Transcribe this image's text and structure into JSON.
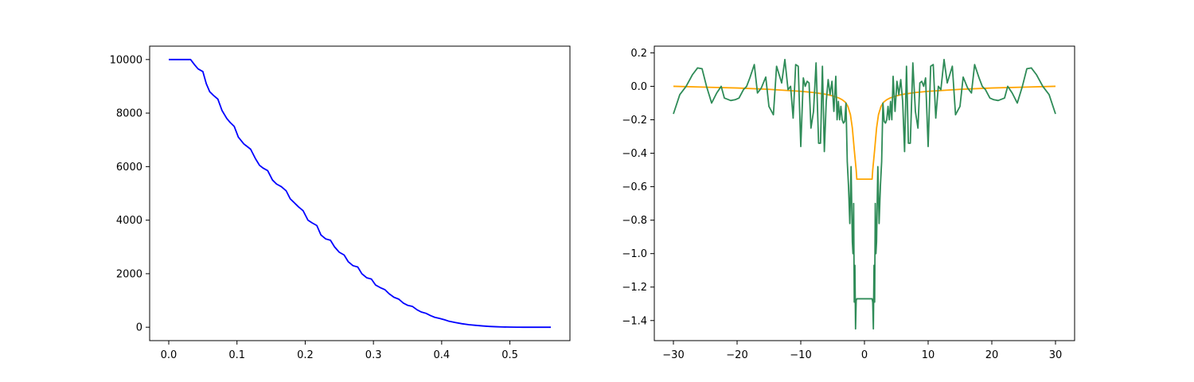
{
  "chart_data": [
    {
      "type": "line",
      "title": "",
      "xlabel": "",
      "ylabel": "",
      "xlim": [
        -0.028,
        0.588
      ],
      "ylim": [
        -500,
        10500
      ],
      "grid": false,
      "xticks": [
        0.0,
        0.1,
        0.2,
        0.3,
        0.4,
        0.5
      ],
      "xtick_labels": [
        "0.0",
        "0.1",
        "0.2",
        "0.3",
        "0.4",
        "0.5"
      ],
      "yticks": [
        0,
        2000,
        4000,
        6000,
        8000,
        10000
      ],
      "ytick_labels": [
        "0",
        "2000",
        "4000",
        "6000",
        "8000",
        "10000"
      ],
      "series": [
        {
          "color": "#0000ff",
          "x": [
            0.0,
            0.01,
            0.02,
            0.032,
            0.038,
            0.043,
            0.05,
            0.055,
            0.06,
            0.066,
            0.072,
            0.078,
            0.085,
            0.09,
            0.096,
            0.102,
            0.11,
            0.115,
            0.12,
            0.127,
            0.133,
            0.138,
            0.145,
            0.152,
            0.158,
            0.165,
            0.172,
            0.178,
            0.184,
            0.19,
            0.197,
            0.204,
            0.21,
            0.217,
            0.223,
            0.23,
            0.237,
            0.243,
            0.25,
            0.257,
            0.263,
            0.27,
            0.277,
            0.283,
            0.29,
            0.297,
            0.303,
            0.31,
            0.317,
            0.323,
            0.33,
            0.337,
            0.344,
            0.35,
            0.357,
            0.364,
            0.37,
            0.377,
            0.384,
            0.39,
            0.397,
            0.404,
            0.41,
            0.42,
            0.43,
            0.44,
            0.45,
            0.46,
            0.47,
            0.48,
            0.49,
            0.5,
            0.51,
            0.52,
            0.53,
            0.54,
            0.55,
            0.56
          ],
          "y": [
            10000,
            10000,
            10000,
            10000,
            9800,
            9650,
            9550,
            9100,
            8800,
            8650,
            8520,
            8100,
            7800,
            7650,
            7500,
            7100,
            6850,
            6750,
            6650,
            6300,
            6050,
            5950,
            5850,
            5500,
            5350,
            5250,
            5100,
            4800,
            4650,
            4500,
            4350,
            4000,
            3900,
            3800,
            3450,
            3300,
            3250,
            3000,
            2800,
            2700,
            2450,
            2300,
            2250,
            2000,
            1850,
            1800,
            1580,
            1480,
            1400,
            1250,
            1120,
            1050,
            900,
            820,
            780,
            650,
            570,
            520,
            430,
            370,
            330,
            280,
            230,
            175,
            130,
            95,
            70,
            48,
            30,
            18,
            10,
            5,
            2,
            0,
            0,
            0,
            0,
            0
          ]
        }
      ]
    },
    {
      "type": "line",
      "title": "",
      "xlabel": "",
      "ylabel": "",
      "xlim": [
        -33.0,
        33.0
      ],
      "ylim": [
        -1.52,
        0.24
      ],
      "grid": false,
      "xticks": [
        -30,
        -20,
        -10,
        0,
        10,
        20,
        30
      ],
      "xtick_labels": [
        "−30",
        "−20",
        "−10",
        "0",
        "10",
        "20",
        "30"
      ],
      "yticks": [
        0.2,
        0.0,
        -0.2,
        -0.4,
        -0.6,
        -0.8,
        -1.0,
        -1.2,
        -1.4
      ],
      "ytick_labels": [
        "0.2",
        "0.0",
        "−0.2",
        "−0.4",
        "−0.6",
        "−0.8",
        "−1.0",
        "−1.2",
        "−1.4"
      ],
      "series": [
        {
          "color": "#ffa500",
          "x": [
            -30,
            -25,
            -20,
            -15,
            -10,
            -8,
            -6,
            -5,
            -4,
            -3.5,
            -3,
            -2.6,
            -2.2,
            -1.9,
            -1.6,
            -1.3,
            -1.2,
            1.2,
            1.3,
            1.6,
            1.9,
            2.2,
            2.6,
            3,
            3.5,
            4,
            5,
            6,
            8,
            10,
            15,
            20,
            25,
            30
          ],
          "y": [
            0.0,
            -0.005,
            -0.01,
            -0.018,
            -0.03,
            -0.037,
            -0.048,
            -0.057,
            -0.07,
            -0.08,
            -0.095,
            -0.12,
            -0.17,
            -0.25,
            -0.38,
            -0.5,
            -0.555,
            -0.555,
            -0.5,
            -0.38,
            -0.25,
            -0.17,
            -0.12,
            -0.095,
            -0.08,
            -0.07,
            -0.057,
            -0.048,
            -0.037,
            -0.03,
            -0.018,
            -0.01,
            -0.005,
            0.0
          ]
        },
        {
          "color": "#2e8b57",
          "x": [
            -30,
            -29,
            -28,
            -27,
            -26.2,
            -25.5,
            -24.8,
            -24,
            -23.2,
            -22.5,
            -22,
            -21,
            -20.3,
            -19.7,
            -19,
            -18.5,
            -18,
            -17.3,
            -16.8,
            -16.2,
            -15.5,
            -15,
            -14.3,
            -13.8,
            -13,
            -12.5,
            -12,
            -11.6,
            -11.2,
            -10.8,
            -10.4,
            -10,
            -9.6,
            -9.3,
            -9,
            -8.7,
            -8.4,
            -8,
            -7.6,
            -7.2,
            -6.9,
            -6.6,
            -6.3,
            -6.0,
            -5.7,
            -5.4,
            -5.1,
            -4.8,
            -4.5,
            -4.3,
            -4.1,
            -3.9,
            -3.7,
            -3.5,
            -3.3,
            -3.1,
            -2.9,
            -2.7,
            -2.5,
            -2.3,
            -2.1,
            -1.9,
            -1.8,
            -1.7,
            -1.6,
            -1.5,
            -1.4,
            -1.3,
            -1.2,
            -1.1,
            -1.0,
            1.0,
            1.1,
            1.2,
            1.3,
            1.4,
            1.5,
            1.6,
            1.7,
            1.8,
            1.9,
            2.1,
            2.3,
            2.5,
            2.7,
            2.9,
            3.1,
            3.3,
            3.5,
            3.7,
            3.9,
            4.1,
            4.3,
            4.5,
            4.8,
            5.1,
            5.4,
            5.7,
            6.0,
            6.3,
            6.6,
            6.9,
            7.2,
            7.6,
            8.0,
            8.4,
            8.7,
            9.0,
            9.3,
            9.6,
            10.0,
            10.4,
            10.8,
            11.2,
            11.6,
            12.0,
            12.5,
            13.0,
            13.8,
            14.3,
            15.0,
            15.5,
            16.2,
            16.8,
            17.3,
            18.0,
            18.5,
            19.0,
            19.7,
            20.3,
            21.0,
            22.0,
            22.5,
            23.2,
            24.0,
            24.8,
            25.5,
            26.2,
            27.0,
            28.0,
            29.0,
            30.0
          ],
          "y": [
            -0.165,
            -0.05,
            0.0,
            0.07,
            0.11,
            0.105,
            0.0,
            -0.1,
            -0.04,
            0.0,
            -0.07,
            -0.085,
            -0.08,
            -0.07,
            -0.02,
            0.0,
            0.05,
            0.13,
            -0.04,
            -0.01,
            0.055,
            -0.12,
            -0.17,
            0.12,
            0.02,
            0.16,
            -0.02,
            0.0,
            -0.19,
            0.13,
            0.12,
            -0.36,
            0.05,
            0.0,
            0.03,
            0.02,
            -0.25,
            -0.15,
            0.14,
            -0.34,
            -0.34,
            0.12,
            -0.39,
            -0.09,
            0.04,
            -0.05,
            0.03,
            -0.15,
            0.06,
            -0.2,
            -0.09,
            -0.2,
            -0.12,
            -0.2,
            -0.22,
            -0.21,
            -0.1,
            -0.45,
            -0.6,
            -0.82,
            -0.48,
            -0.93,
            -1.0,
            -0.7,
            -1.29,
            -1.07,
            -1.45,
            -1.28,
            -1.27,
            -1.27,
            -1.27,
            -1.27,
            -1.27,
            -1.27,
            -1.29,
            -1.45,
            -1.07,
            -1.29,
            -0.7,
            -1.0,
            -0.93,
            -0.48,
            -0.82,
            -0.6,
            -0.45,
            -0.1,
            -0.21,
            -0.22,
            -0.2,
            -0.12,
            -0.2,
            -0.09,
            -0.2,
            0.06,
            -0.15,
            0.03,
            -0.05,
            0.04,
            -0.09,
            -0.39,
            0.12,
            -0.34,
            -0.34,
            0.14,
            -0.15,
            -0.25,
            0.02,
            0.03,
            0.0,
            0.05,
            -0.36,
            0.12,
            0.13,
            -0.19,
            0.0,
            -0.02,
            0.16,
            0.02,
            0.12,
            -0.17,
            -0.12,
            0.055,
            -0.01,
            -0.04,
            0.13,
            0.05,
            0.0,
            -0.02,
            -0.07,
            -0.08,
            -0.085,
            -0.07,
            0.0,
            -0.04,
            -0.1,
            0.0,
            0.105,
            0.11,
            0.07,
            0.0,
            -0.05,
            -0.165
          ]
        }
      ]
    }
  ]
}
